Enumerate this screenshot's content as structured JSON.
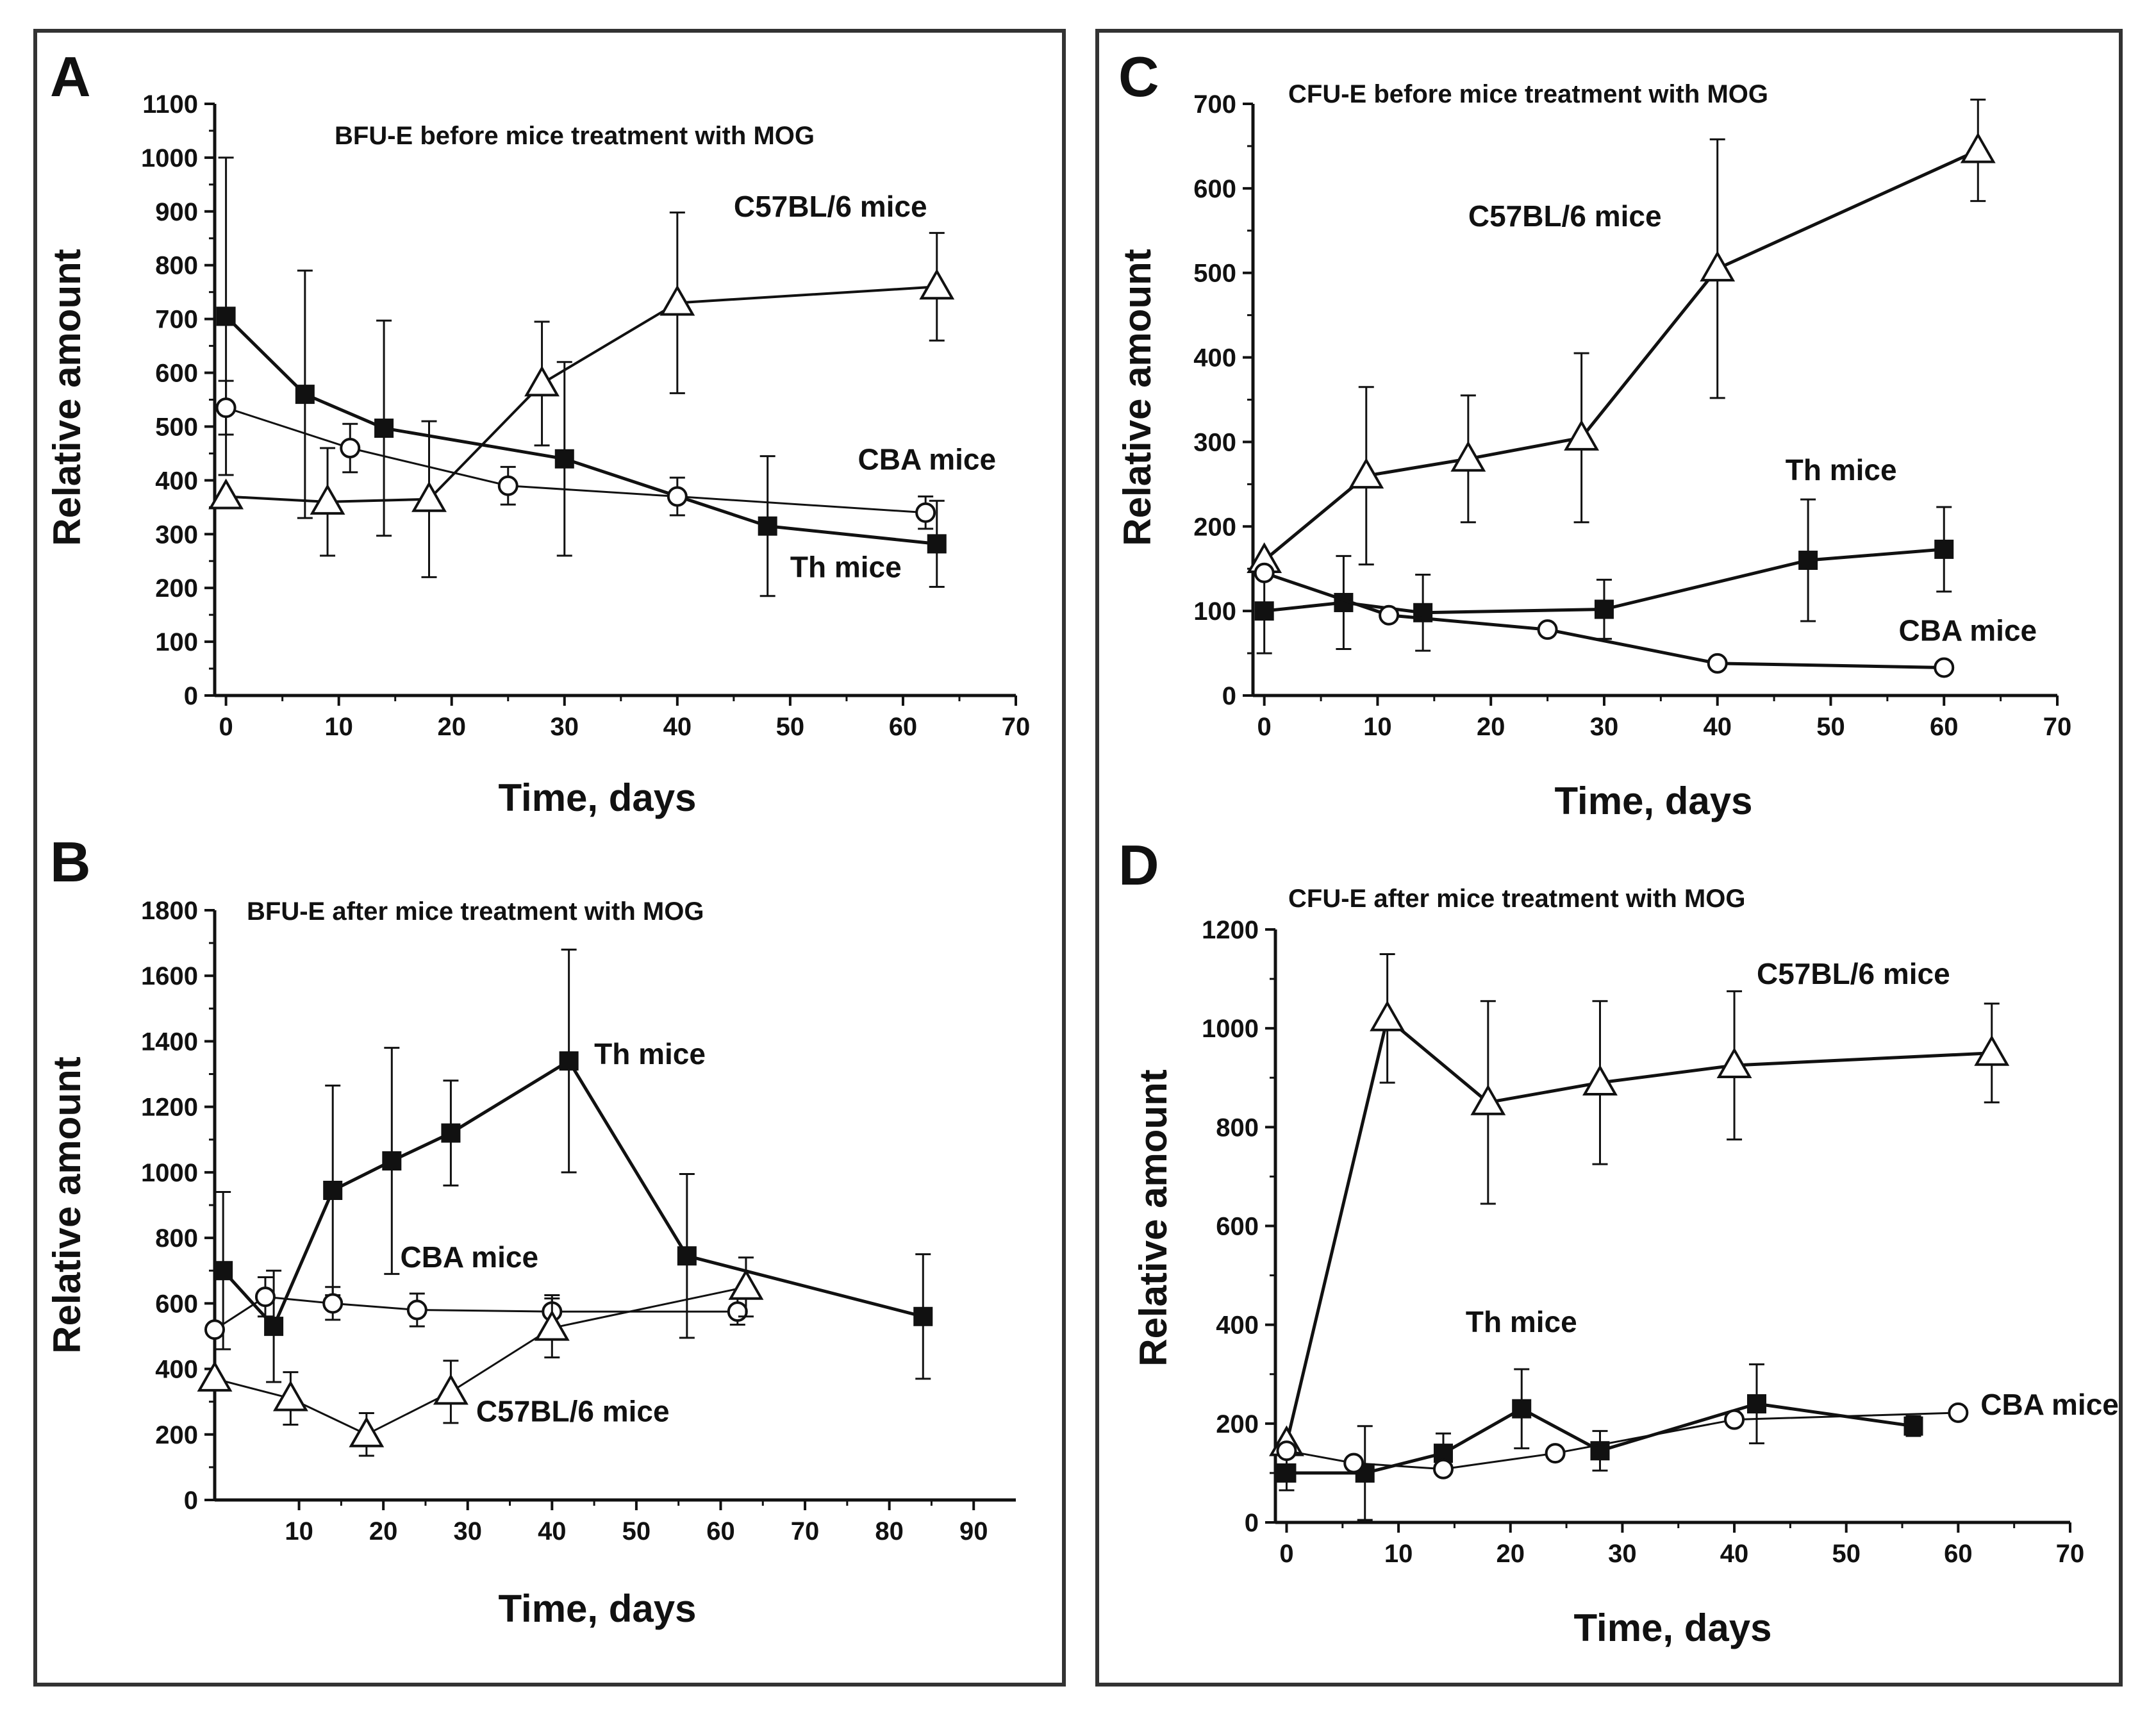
{
  "figure": {
    "frame_color": "#333333",
    "line_color": "#111111"
  },
  "chart_data": [
    {
      "panel": "A",
      "type": "line",
      "title": "BFU-E before mice treatment with MOG",
      "xlabel": "Time, days",
      "ylabel": "Relative amount",
      "xlim": [
        -1,
        70
      ],
      "ylim": [
        0,
        1100
      ],
      "xticks": [
        0,
        10,
        20,
        30,
        40,
        50,
        60,
        70
      ],
      "yticks": [
        0,
        100,
        200,
        300,
        400,
        500,
        600,
        700,
        800,
        900,
        1000,
        1100
      ],
      "series": [
        {
          "name": "C57BL/6 mice",
          "marker": "triangle-open",
          "line_width": 4,
          "x": [
            0,
            9,
            18,
            28,
            40,
            63
          ],
          "values": [
            370,
            360,
            365,
            580,
            730,
            760
          ],
          "errors": [
            0,
            100,
            145,
            115,
            168,
            100
          ]
        },
        {
          "name": "Th mice",
          "marker": "square-filled",
          "line_width": 5,
          "x": [
            0,
            7,
            14,
            30,
            48,
            63
          ],
          "values": [
            705,
            560,
            497,
            440,
            315,
            282
          ],
          "errors": [
            295,
            230,
            200,
            180,
            130,
            80
          ]
        },
        {
          "name": "CBA mice",
          "marker": "circle-open",
          "line_width": 3,
          "x": [
            0,
            11,
            25,
            40,
            62
          ],
          "values": [
            535,
            460,
            390,
            370,
            340
          ],
          "errors": [
            50,
            45,
            35,
            35,
            30
          ]
        }
      ],
      "labels": [
        {
          "text": "C57BL/6 mice",
          "x": 45,
          "y": 890
        },
        {
          "text": "CBA mice",
          "x": 56,
          "y": 420
        },
        {
          "text": "Th mice",
          "x": 50,
          "y": 220
        }
      ]
    },
    {
      "panel": "B",
      "type": "line",
      "title": "BFU-E after mice treatment with MOG",
      "xlabel": "Time, days",
      "ylabel": "Relative amount",
      "xlim": [
        0,
        95
      ],
      "ylim": [
        0,
        1800
      ],
      "xticks": [
        10,
        20,
        30,
        40,
        50,
        60,
        70,
        80,
        90
      ],
      "yticks": [
        0,
        200,
        400,
        600,
        800,
        1000,
        1200,
        1400,
        1600,
        1800
      ],
      "series": [
        {
          "name": "Th mice",
          "marker": "square-filled",
          "line_width": 5,
          "x": [
            1,
            7,
            14,
            21,
            28,
            42,
            56,
            84
          ],
          "values": [
            700,
            530,
            945,
            1035,
            1120,
            1340,
            745,
            560
          ],
          "errors": [
            240,
            170,
            320,
            345,
            160,
            340,
            250,
            190
          ]
        },
        {
          "name": "CBA mice",
          "marker": "circle-open",
          "line_width": 3,
          "x": [
            0,
            6,
            14,
            24,
            40,
            62
          ],
          "values": [
            520,
            620,
            600,
            580,
            575,
            575
          ],
          "errors": [
            0,
            60,
            50,
            50,
            50,
            40
          ]
        },
        {
          "name": "C57BL/6 mice",
          "marker": "triangle-open",
          "line_width": 3,
          "x": [
            0,
            9,
            18,
            28,
            40,
            63
          ],
          "values": [
            370,
            310,
            200,
            330,
            525,
            650
          ],
          "errors": [
            0,
            80,
            65,
            95,
            90,
            90
          ]
        }
      ],
      "labels": [
        {
          "text": "Th mice",
          "x": 45,
          "y": 1330
        },
        {
          "text": "CBA mice",
          "x": 22,
          "y": 710
        },
        {
          "text": "C57BL/6 mice",
          "x": 31,
          "y": 240
        }
      ]
    },
    {
      "panel": "C",
      "type": "line",
      "title": "CFU-E before  mice treatment with MOG",
      "xlabel": "Time, days",
      "ylabel": "Relative amount",
      "xlim": [
        -1,
        70
      ],
      "ylim": [
        0,
        700
      ],
      "xticks": [
        0,
        10,
        20,
        30,
        40,
        50,
        60,
        70
      ],
      "yticks": [
        0,
        100,
        200,
        300,
        400,
        500,
        600,
        700
      ],
      "series": [
        {
          "name": "C57BL/6 mice",
          "marker": "triangle-open",
          "line_width": 5,
          "x": [
            0,
            9,
            18,
            28,
            40,
            63
          ],
          "values": [
            160,
            260,
            280,
            305,
            505,
            645
          ],
          "errors": [
            0,
            105,
            75,
            100,
            153,
            60
          ]
        },
        {
          "name": "Th mice",
          "marker": "square-filled",
          "line_width": 5,
          "x": [
            0,
            7,
            14,
            30,
            48,
            60
          ],
          "values": [
            100,
            110,
            98,
            102,
            160,
            173
          ],
          "errors": [
            50,
            55,
            45,
            35,
            72,
            50
          ]
        },
        {
          "name": "CBA mice",
          "marker": "circle-open",
          "line_width": 5,
          "x": [
            0,
            11,
            25,
            40,
            60
          ],
          "values": [
            145,
            95,
            78,
            38,
            33
          ],
          "errors": [
            0,
            5,
            5,
            5,
            5
          ]
        }
      ],
      "labels": [
        {
          "text": "C57BL/6 mice",
          "x": 18,
          "y": 555
        },
        {
          "text": "Th mice",
          "x": 46,
          "y": 255
        },
        {
          "text": "CBA mice",
          "x": 56,
          "y": 65
        }
      ]
    },
    {
      "panel": "D",
      "type": "line",
      "title": "CFU-E after  mice treatment with MOG",
      "xlabel": "Time, days",
      "ylabel": "Relative amount",
      "xlim": [
        -1,
        70
      ],
      "ylim": [
        0,
        1200
      ],
      "xticks": [
        0,
        10,
        20,
        30,
        40,
        50,
        60,
        70
      ],
      "yticks": [
        0,
        200,
        400,
        600,
        800,
        1000,
        1200
      ],
      "series": [
        {
          "name": "C57BL/6 mice",
          "marker": "triangle-open",
          "line_width": 5,
          "x": [
            0,
            9,
            18,
            28,
            40,
            63
          ],
          "values": [
            160,
            1020,
            850,
            890,
            925,
            950
          ],
          "errors": [
            0,
            130,
            205,
            165,
            150,
            100
          ]
        },
        {
          "name": "Th mice",
          "marker": "square-filled",
          "line_width": 5,
          "x": [
            0,
            7,
            14,
            21,
            28,
            42,
            56
          ],
          "values": [
            100,
            100,
            140,
            230,
            145,
            240,
            195
          ],
          "errors": [
            35,
            95,
            40,
            80,
            40,
            80,
            20
          ]
        },
        {
          "name": "CBA mice",
          "marker": "circle-open",
          "line_width": 3,
          "x": [
            0,
            6,
            14,
            24,
            40,
            60
          ],
          "values": [
            145,
            120,
            108,
            140,
            208,
            222
          ],
          "errors": [
            0,
            0,
            0,
            0,
            0,
            0
          ]
        }
      ],
      "labels": [
        {
          "text": "C57BL/6 mice",
          "x": 42,
          "y": 1090
        },
        {
          "text": "Th mice",
          "x": 16,
          "y": 385
        },
        {
          "text": "CBA mice",
          "x": 62,
          "y": 218
        }
      ]
    }
  ]
}
